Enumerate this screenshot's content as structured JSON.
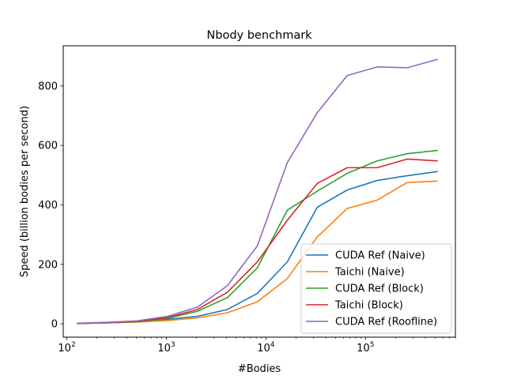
{
  "chart_data": {
    "type": "line",
    "title": "Nbody benchmark",
    "xlabel": "#Bodies",
    "ylabel": "Speed (billion bodies per second)",
    "xscale": "log",
    "xlim": [
      92,
      800000
    ],
    "ylim": [
      -45,
      935
    ],
    "xticks": [
      {
        "value": 100,
        "base": "10",
        "exp": "2"
      },
      {
        "value": 1000,
        "base": "10",
        "exp": "3"
      },
      {
        "value": 10000,
        "base": "10",
        "exp": "4"
      },
      {
        "value": 100000,
        "base": "10",
        "exp": "5"
      }
    ],
    "yticks": [
      {
        "value": 0,
        "label": "0"
      },
      {
        "value": 200,
        "label": "200"
      },
      {
        "value": 400,
        "label": "400"
      },
      {
        "value": 600,
        "label": "600"
      },
      {
        "value": 800,
        "label": "800"
      }
    ],
    "grid": false,
    "legend_position": "lower-right",
    "x": [
      128,
      256,
      512,
      1024,
      2048,
      4096,
      8192,
      16384,
      32768,
      65536,
      131072,
      262144,
      524288
    ],
    "series": [
      {
        "name": "CUDA Ref (Naive)",
        "color": "#1f77b4",
        "values": [
          1,
          3,
          7,
          15,
          25,
          48,
          102,
          208,
          392,
          450,
          482,
          498,
          512
        ]
      },
      {
        "name": "Taichi (Naive)",
        "color": "#ff7f0e",
        "values": [
          1,
          3,
          6,
          11,
          20,
          37,
          74,
          152,
          292,
          388,
          416,
          475,
          480
        ]
      },
      {
        "name": "CUDA Ref (Block)",
        "color": "#2ca02c",
        "values": [
          1,
          4,
          7,
          18,
          42,
          88,
          188,
          382,
          446,
          506,
          548,
          572,
          583
        ]
      },
      {
        "name": "Taichi (Block)",
        "color": "#d62728",
        "values": [
          1,
          4,
          8,
          21,
          48,
          106,
          208,
          348,
          472,
          525,
          525,
          554,
          548
        ]
      },
      {
        "name": "CUDA Ref (Roofline)",
        "color": "#9467bd",
        "values": [
          2,
          5,
          10,
          25,
          56,
          128,
          262,
          542,
          710,
          835,
          864,
          861,
          889
        ]
      }
    ]
  }
}
